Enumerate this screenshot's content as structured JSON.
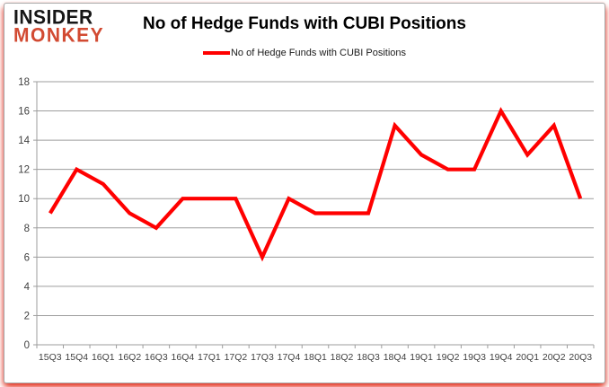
{
  "logo": {
    "line1": "INSIDER",
    "line2": "MONKEY"
  },
  "header": {
    "title": "No of Hedge Funds with CUBI Positions"
  },
  "legend": {
    "label": "No of Hedge Funds with CUBI Positions"
  },
  "chart_data": {
    "type": "line",
    "title": "No of Hedge Funds with CUBI Positions",
    "categories": [
      "15Q3",
      "15Q4",
      "16Q1",
      "16Q2",
      "16Q3",
      "16Q4",
      "17Q1",
      "17Q2",
      "17Q3",
      "17Q4",
      "18Q1",
      "18Q2",
      "18Q3",
      "18Q4",
      "19Q1",
      "19Q2",
      "19Q3",
      "19Q4",
      "20Q1",
      "20Q2",
      "20Q3"
    ],
    "values": [
      9,
      12,
      11,
      9,
      8,
      10,
      10,
      10,
      6,
      10,
      9,
      9,
      9,
      15,
      13,
      12,
      12,
      16,
      13,
      15,
      10
    ],
    "xlabel": "",
    "ylabel": "",
    "ylim": [
      0,
      18
    ],
    "ytick_step": 2,
    "grid": true,
    "legend_entries": [
      "No of Hedge Funds with CUBI Positions"
    ],
    "legend_position": "top-center",
    "line_color": "#ff0000",
    "gridline_color": "#9d9d9d",
    "axis_label_color": "#3f3f3f"
  },
  "colors": {
    "logo_black": "#161616",
    "logo_red": "#d24a32",
    "series_red": "#ff0000",
    "frame_border": "#a8a8a8",
    "glow_red": "#e22412"
  }
}
